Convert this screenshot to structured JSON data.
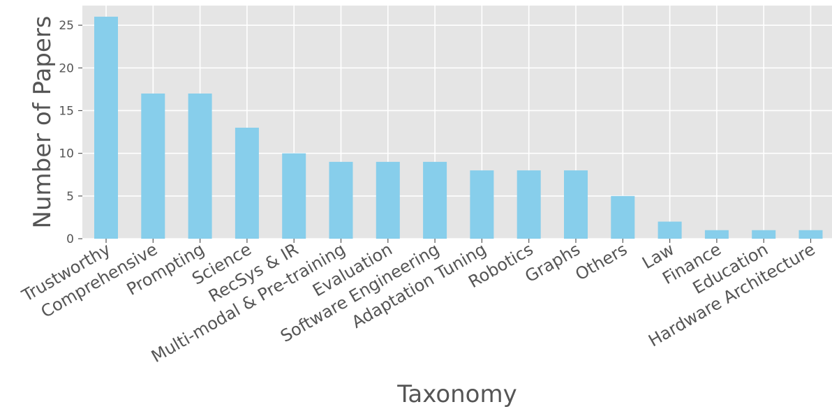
{
  "chart_data": {
    "type": "bar",
    "xlabel": "Taxonomy",
    "ylabel": "Number of Papers",
    "categories": [
      "Trustworthy",
      "Comprehensive",
      "Prompting",
      "Science",
      "RecSys & IR",
      "Multi-modal & Pre-training",
      "Evaluation",
      "Software Engineering",
      "Adaptation Tuning",
      "Robotics",
      "Graphs",
      "Others",
      "Law",
      "Finance",
      "Education",
      "Hardware Architecture"
    ],
    "values": [
      26,
      17,
      17,
      13,
      10,
      9,
      9,
      9,
      8,
      8,
      8,
      5,
      2,
      1,
      1,
      1
    ],
    "ylim": [
      0,
      27.3
    ],
    "yticks": [
      0,
      5,
      10,
      15,
      20,
      25
    ],
    "grid": true,
    "bar_color": "#87ceeb",
    "background_color": "#e5e5e5",
    "grid_color": "#ffffff"
  }
}
